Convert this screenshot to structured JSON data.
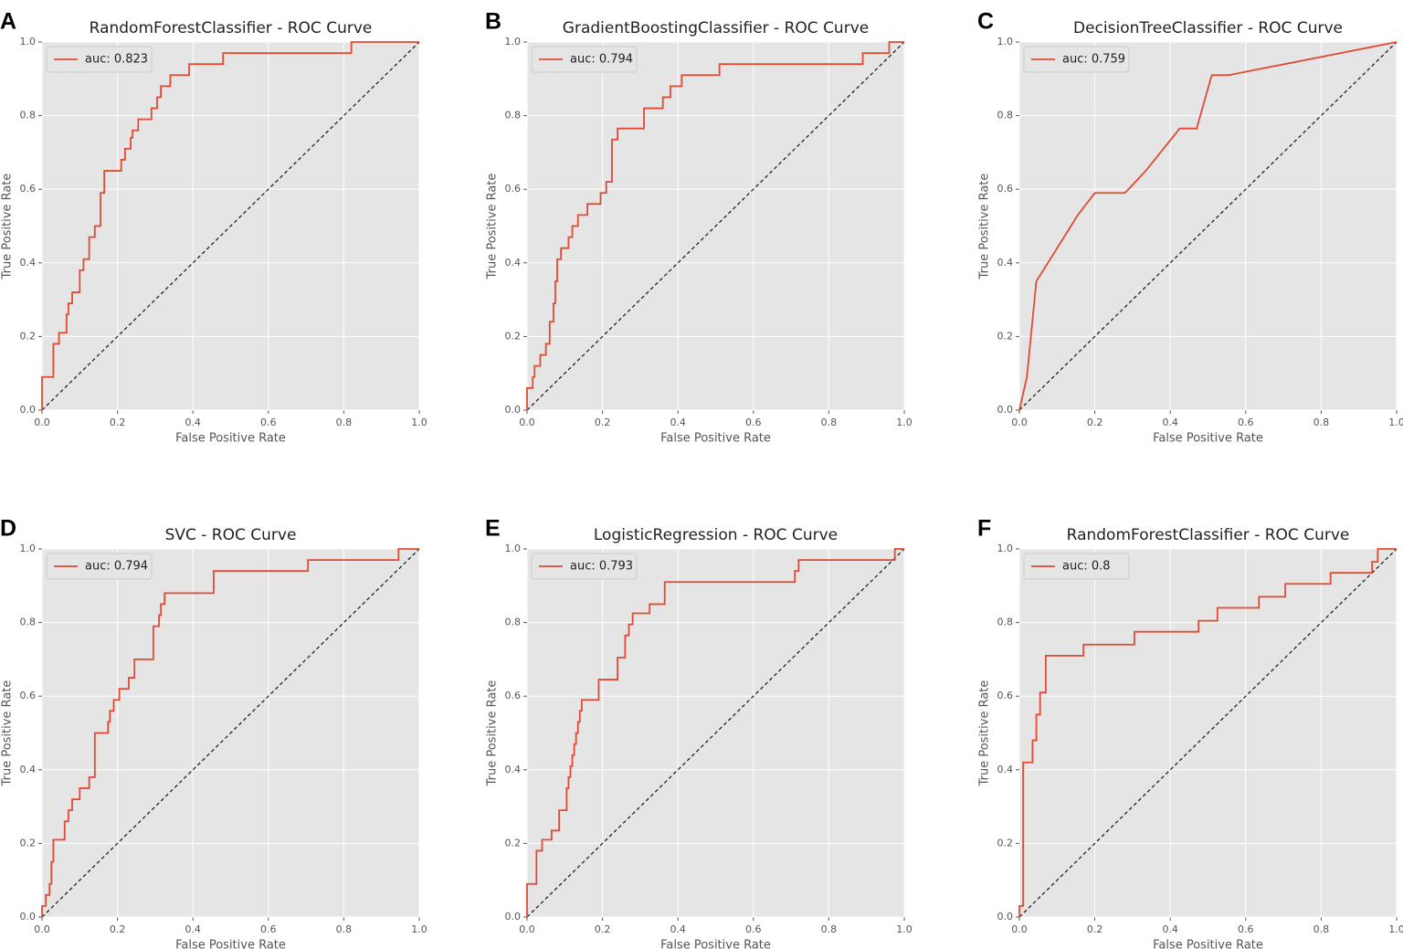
{
  "chart_data": [
    {
      "type": "line",
      "panel": "A",
      "title": "RandomForestClassifier - ROC Curve",
      "xlabel": "False Positive Rate",
      "ylabel": "True Positive Rate",
      "grid": true,
      "legend": "upper left",
      "diagonal": true,
      "xlim": [
        0,
        1
      ],
      "ylim": [
        0,
        1
      ],
      "xticks": [
        {
          "value": 0,
          "label": "0.0"
        },
        {
          "value": 0.2,
          "label": "0.2"
        },
        {
          "value": 0.4,
          "label": "0.4"
        },
        {
          "value": 0.6,
          "label": "0.6"
        },
        {
          "value": 0.8,
          "label": "0.8"
        },
        {
          "value": 1,
          "label": "1.0"
        }
      ],
      "yticks": [
        {
          "value": 0,
          "label": "0.0"
        },
        {
          "value": 0.2,
          "label": "0.2"
        },
        {
          "value": 0.4,
          "label": "0.4"
        },
        {
          "value": 0.6,
          "label": "0.6"
        },
        {
          "value": 0.8,
          "label": "0.8"
        },
        {
          "value": 1,
          "label": "1.0"
        }
      ],
      "series": [
        {
          "name": "auc: 0.823",
          "color": "#e24a33",
          "x": [
            0,
            0,
            0.03,
            0.03,
            0.045,
            0.045,
            0.065,
            0.065,
            0.07,
            0.07,
            0.08,
            0.08,
            0.1,
            0.1,
            0.11,
            0.11,
            0.125,
            0.125,
            0.14,
            0.14,
            0.155,
            0.155,
            0.165,
            0.165,
            0.21,
            0.21,
            0.22,
            0.22,
            0.235,
            0.235,
            0.24,
            0.24,
            0.255,
            0.255,
            0.29,
            0.29,
            0.305,
            0.305,
            0.315,
            0.315,
            0.34,
            0.34,
            0.39,
            0.39,
            0.48,
            0.48,
            0.82,
            0.82,
            1
          ],
          "values": [
            0,
            0.09,
            0.09,
            0.18,
            0.18,
            0.21,
            0.21,
            0.26,
            0.26,
            0.29,
            0.29,
            0.32,
            0.32,
            0.38,
            0.38,
            0.41,
            0.41,
            0.47,
            0.47,
            0.5,
            0.5,
            0.59,
            0.59,
            0.65,
            0.65,
            0.68,
            0.68,
            0.71,
            0.71,
            0.74,
            0.74,
            0.76,
            0.76,
            0.79,
            0.79,
            0.82,
            0.82,
            0.85,
            0.85,
            0.88,
            0.88,
            0.91,
            0.91,
            0.94,
            0.94,
            0.97,
            0.97,
            1,
            1
          ]
        }
      ]
    },
    {
      "type": "line",
      "panel": "B",
      "title": "GradientBoostingClassifier - ROC Curve",
      "xlabel": "False Positive Rate",
      "ylabel": "True Positive Rate",
      "grid": true,
      "legend": "upper left",
      "diagonal": true,
      "xlim": [
        0,
        1
      ],
      "ylim": [
        0,
        1
      ],
      "xticks": [
        {
          "value": 0,
          "label": "0.0"
        },
        {
          "value": 0.2,
          "label": "0.2"
        },
        {
          "value": 0.4,
          "label": "0.4"
        },
        {
          "value": 0.6,
          "label": "0.6"
        },
        {
          "value": 0.8,
          "label": "0.8"
        },
        {
          "value": 1,
          "label": "1.0"
        }
      ],
      "yticks": [
        {
          "value": 0,
          "label": "0.0"
        },
        {
          "value": 0.2,
          "label": "0.2"
        },
        {
          "value": 0.4,
          "label": "0.4"
        },
        {
          "value": 0.6,
          "label": "0.6"
        },
        {
          "value": 0.8,
          "label": "0.8"
        },
        {
          "value": 1,
          "label": "1.0"
        }
      ],
      "series": [
        {
          "name": "auc: 0.794",
          "color": "#e24a33",
          "x": [
            0,
            0,
            0.015,
            0.015,
            0.02,
            0.02,
            0.035,
            0.035,
            0.05,
            0.05,
            0.06,
            0.06,
            0.07,
            0.07,
            0.075,
            0.075,
            0.08,
            0.08,
            0.09,
            0.09,
            0.11,
            0.11,
            0.12,
            0.12,
            0.135,
            0.135,
            0.16,
            0.16,
            0.195,
            0.195,
            0.21,
            0.21,
            0.225,
            0.225,
            0.24,
            0.24,
            0.31,
            0.31,
            0.36,
            0.36,
            0.38,
            0.38,
            0.41,
            0.41,
            0.51,
            0.51,
            0.89,
            0.89,
            0.96,
            0.96,
            1
          ],
          "values": [
            0,
            0.06,
            0.06,
            0.09,
            0.09,
            0.12,
            0.12,
            0.15,
            0.15,
            0.18,
            0.18,
            0.24,
            0.24,
            0.29,
            0.29,
            0.35,
            0.35,
            0.41,
            0.41,
            0.44,
            0.44,
            0.47,
            0.47,
            0.5,
            0.5,
            0.53,
            0.53,
            0.56,
            0.56,
            0.59,
            0.59,
            0.62,
            0.62,
            0.735,
            0.735,
            0.765,
            0.765,
            0.82,
            0.82,
            0.85,
            0.85,
            0.88,
            0.88,
            0.91,
            0.91,
            0.94,
            0.94,
            0.97,
            0.97,
            1,
            1
          ]
        }
      ]
    },
    {
      "type": "line",
      "panel": "C",
      "title": "DecisionTreeClassifier - ROC Curve",
      "xlabel": "False Positive Rate",
      "ylabel": "True Positive Rate",
      "grid": true,
      "legend": "upper left",
      "diagonal": true,
      "xlim": [
        0,
        1
      ],
      "ylim": [
        0,
        1
      ],
      "xticks": [
        {
          "value": 0,
          "label": "0.0"
        },
        {
          "value": 0.2,
          "label": "0.2"
        },
        {
          "value": 0.4,
          "label": "0.4"
        },
        {
          "value": 0.6,
          "label": "0.6"
        },
        {
          "value": 0.8,
          "label": "0.8"
        },
        {
          "value": 1,
          "label": "1.0"
        }
      ],
      "yticks": [
        {
          "value": 0,
          "label": "0.0"
        },
        {
          "value": 0.2,
          "label": "0.2"
        },
        {
          "value": 0.4,
          "label": "0.4"
        },
        {
          "value": 0.6,
          "label": "0.6"
        },
        {
          "value": 0.8,
          "label": "0.8"
        },
        {
          "value": 1,
          "label": "1.0"
        }
      ],
      "series": [
        {
          "name": "auc: 0.759",
          "color": "#e24a33",
          "x": [
            0,
            0.02,
            0.045,
            0.155,
            0.2,
            0.28,
            0.335,
            0.425,
            0.47,
            0.51,
            0.555,
            1
          ],
          "values": [
            0,
            0.09,
            0.35,
            0.53,
            0.59,
            0.59,
            0.65,
            0.765,
            0.765,
            0.91,
            0.91,
            1
          ]
        }
      ]
    },
    {
      "type": "line",
      "panel": "D",
      "title": "SVC - ROC Curve",
      "xlabel": "False Positive Rate",
      "ylabel": "True Positive Rate",
      "grid": true,
      "legend": "upper left",
      "diagonal": true,
      "xlim": [
        0,
        1
      ],
      "ylim": [
        0,
        1
      ],
      "xticks": [
        {
          "value": 0,
          "label": "0.0"
        },
        {
          "value": 0.2,
          "label": "0.2"
        },
        {
          "value": 0.4,
          "label": "0.4"
        },
        {
          "value": 0.6,
          "label": "0.6"
        },
        {
          "value": 0.8,
          "label": "0.8"
        },
        {
          "value": 1,
          "label": "1.0"
        }
      ],
      "yticks": [
        {
          "value": 0,
          "label": "0.0"
        },
        {
          "value": 0.2,
          "label": "0.2"
        },
        {
          "value": 0.4,
          "label": "0.4"
        },
        {
          "value": 0.6,
          "label": "0.6"
        },
        {
          "value": 0.8,
          "label": "0.8"
        },
        {
          "value": 1,
          "label": "1.0"
        }
      ],
      "series": [
        {
          "name": "auc: 0.794",
          "color": "#e24a33",
          "x": [
            0,
            0,
            0.01,
            0.01,
            0.02,
            0.02,
            0.025,
            0.025,
            0.03,
            0.03,
            0.06,
            0.06,
            0.07,
            0.07,
            0.08,
            0.08,
            0.1,
            0.1,
            0.125,
            0.125,
            0.14,
            0.14,
            0.175,
            0.175,
            0.18,
            0.18,
            0.19,
            0.19,
            0.205,
            0.205,
            0.23,
            0.23,
            0.245,
            0.245,
            0.295,
            0.295,
            0.31,
            0.31,
            0.315,
            0.315,
            0.325,
            0.325,
            0.455,
            0.455,
            0.705,
            0.705,
            0.945,
            0.945,
            1
          ],
          "values": [
            0,
            0.03,
            0.03,
            0.06,
            0.06,
            0.09,
            0.09,
            0.15,
            0.15,
            0.21,
            0.21,
            0.26,
            0.26,
            0.29,
            0.29,
            0.32,
            0.32,
            0.35,
            0.35,
            0.38,
            0.38,
            0.5,
            0.5,
            0.53,
            0.53,
            0.56,
            0.56,
            0.59,
            0.59,
            0.62,
            0.62,
            0.65,
            0.65,
            0.7,
            0.7,
            0.79,
            0.79,
            0.82,
            0.82,
            0.85,
            0.85,
            0.88,
            0.88,
            0.94,
            0.94,
            0.97,
            0.97,
            1,
            1
          ]
        }
      ]
    },
    {
      "type": "line",
      "panel": "E",
      "title": "LogisticRegression - ROC Curve",
      "xlabel": "False Positive Rate",
      "ylabel": "True Positive Rate",
      "grid": true,
      "legend": "upper left",
      "diagonal": true,
      "xlim": [
        0,
        1
      ],
      "ylim": [
        0,
        1
      ],
      "xticks": [
        {
          "value": 0,
          "label": "0.0"
        },
        {
          "value": 0.2,
          "label": "0.2"
        },
        {
          "value": 0.4,
          "label": "0.4"
        },
        {
          "value": 0.6,
          "label": "0.6"
        },
        {
          "value": 0.8,
          "label": "0.8"
        },
        {
          "value": 1,
          "label": "1.0"
        }
      ],
      "yticks": [
        {
          "value": 0,
          "label": "0.0"
        },
        {
          "value": 0.2,
          "label": "0.2"
        },
        {
          "value": 0.4,
          "label": "0.4"
        },
        {
          "value": 0.6,
          "label": "0.6"
        },
        {
          "value": 0.8,
          "label": "0.8"
        },
        {
          "value": 1,
          "label": "1.0"
        }
      ],
      "series": [
        {
          "name": "auc: 0.793",
          "color": "#e24a33",
          "x": [
            0,
            0,
            0.025,
            0.025,
            0.04,
            0.04,
            0.065,
            0.065,
            0.085,
            0.085,
            0.105,
            0.105,
            0.11,
            0.11,
            0.115,
            0.115,
            0.12,
            0.12,
            0.125,
            0.125,
            0.13,
            0.13,
            0.135,
            0.135,
            0.14,
            0.14,
            0.145,
            0.145,
            0.19,
            0.19,
            0.24,
            0.24,
            0.26,
            0.26,
            0.27,
            0.27,
            0.28,
            0.28,
            0.325,
            0.325,
            0.365,
            0.365,
            0.71,
            0.71,
            0.72,
            0.72,
            0.975,
            0.975,
            1
          ],
          "values": [
            0,
            0.09,
            0.09,
            0.18,
            0.18,
            0.21,
            0.21,
            0.235,
            0.235,
            0.29,
            0.29,
            0.35,
            0.35,
            0.38,
            0.38,
            0.41,
            0.41,
            0.44,
            0.44,
            0.47,
            0.47,
            0.5,
            0.5,
            0.53,
            0.53,
            0.56,
            0.56,
            0.59,
            0.59,
            0.645,
            0.645,
            0.705,
            0.705,
            0.765,
            0.765,
            0.795,
            0.795,
            0.825,
            0.825,
            0.85,
            0.85,
            0.91,
            0.91,
            0.94,
            0.94,
            0.97,
            0.97,
            1,
            1
          ]
        }
      ]
    },
    {
      "type": "line",
      "panel": "F",
      "title": "RandomForestClassifier - ROC Curve",
      "xlabel": "False Positive Rate",
      "ylabel": "True Positive Rate",
      "grid": true,
      "legend": "upper left",
      "diagonal": true,
      "xlim": [
        0,
        1
      ],
      "ylim": [
        0,
        1
      ],
      "xticks": [
        {
          "value": 0,
          "label": "0.0"
        },
        {
          "value": 0.2,
          "label": "0.2"
        },
        {
          "value": 0.4,
          "label": "0.4"
        },
        {
          "value": 0.6,
          "label": "0.6"
        },
        {
          "value": 0.8,
          "label": "0.8"
        },
        {
          "value": 1,
          "label": "1.0"
        }
      ],
      "yticks": [
        {
          "value": 0,
          "label": "0.0"
        },
        {
          "value": 0.2,
          "label": "0.2"
        },
        {
          "value": 0.4,
          "label": "0.4"
        },
        {
          "value": 0.6,
          "label": "0.6"
        },
        {
          "value": 0.8,
          "label": "0.8"
        },
        {
          "value": 1,
          "label": "1.0"
        }
      ],
      "series": [
        {
          "name": "auc: 0.8",
          "color": "#e24a33",
          "x": [
            0,
            0,
            0.01,
            0.01,
            0.035,
            0.035,
            0.045,
            0.045,
            0.055,
            0.055,
            0.07,
            0.07,
            0.17,
            0.17,
            0.305,
            0.305,
            0.475,
            0.475,
            0.525,
            0.525,
            0.635,
            0.635,
            0.705,
            0.705,
            0.825,
            0.825,
            0.935,
            0.935,
            0.95,
            0.95,
            1
          ],
          "values": [
            0,
            0.03,
            0.03,
            0.42,
            0.42,
            0.48,
            0.48,
            0.55,
            0.55,
            0.61,
            0.61,
            0.71,
            0.71,
            0.74,
            0.74,
            0.775,
            0.775,
            0.805,
            0.805,
            0.84,
            0.84,
            0.87,
            0.87,
            0.905,
            0.905,
            0.935,
            0.935,
            0.965,
            0.965,
            1,
            1
          ]
        }
      ]
    }
  ]
}
